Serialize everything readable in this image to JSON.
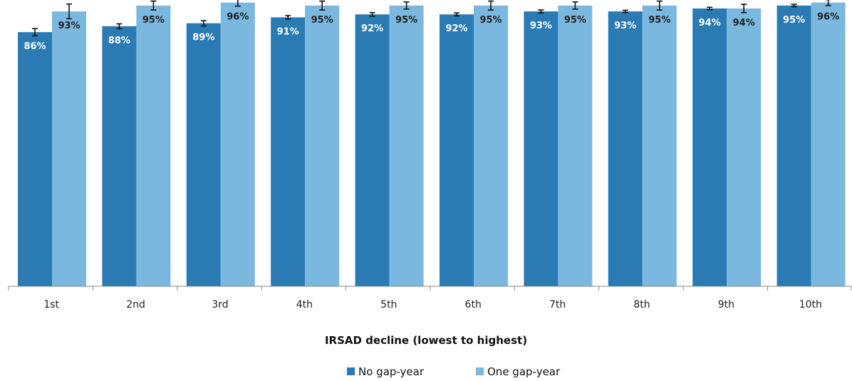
{
  "chart_data": {
    "type": "bar",
    "categories": [
      "1st",
      "2nd",
      "3rd",
      "4th",
      "5th",
      "6th",
      "7th",
      "8th",
      "9th",
      "10th"
    ],
    "series": [
      {
        "name": "No gap-year",
        "values": [
          86,
          88,
          89,
          91,
          92,
          92,
          93,
          93,
          94,
          95
        ],
        "labels": [
          "86%",
          "88%",
          "89%",
          "91%",
          "92%",
          "92%",
          "93%",
          "93%",
          "94%",
          "95%"
        ],
        "error": [
          1.2,
          0.8,
          0.9,
          0.6,
          0.6,
          0.5,
          0.5,
          0.4,
          0.4,
          0.4
        ],
        "color": "#2a7ab4",
        "label_color": "#ffffff"
      },
      {
        "name": "One gap-year",
        "values": [
          93,
          95,
          96,
          95,
          95,
          95,
          95,
          95,
          94,
          96
        ],
        "labels": [
          "93%",
          "95%",
          "96%",
          "95%",
          "95%",
          "95%",
          "95%",
          "95%",
          "94%",
          "96%"
        ],
        "error": [
          2.5,
          1.5,
          1.2,
          1.5,
          1.2,
          1.5,
          1.2,
          1.5,
          1.4,
          1.0
        ],
        "color": "#7bb8e0",
        "label_color": "#222222"
      }
    ],
    "title": "",
    "xlabel": "IRSAD decline (lowest to highest)",
    "ylabel": "",
    "ylim": [
      0,
      100
    ],
    "grid": false,
    "legend": "bottom-center"
  }
}
